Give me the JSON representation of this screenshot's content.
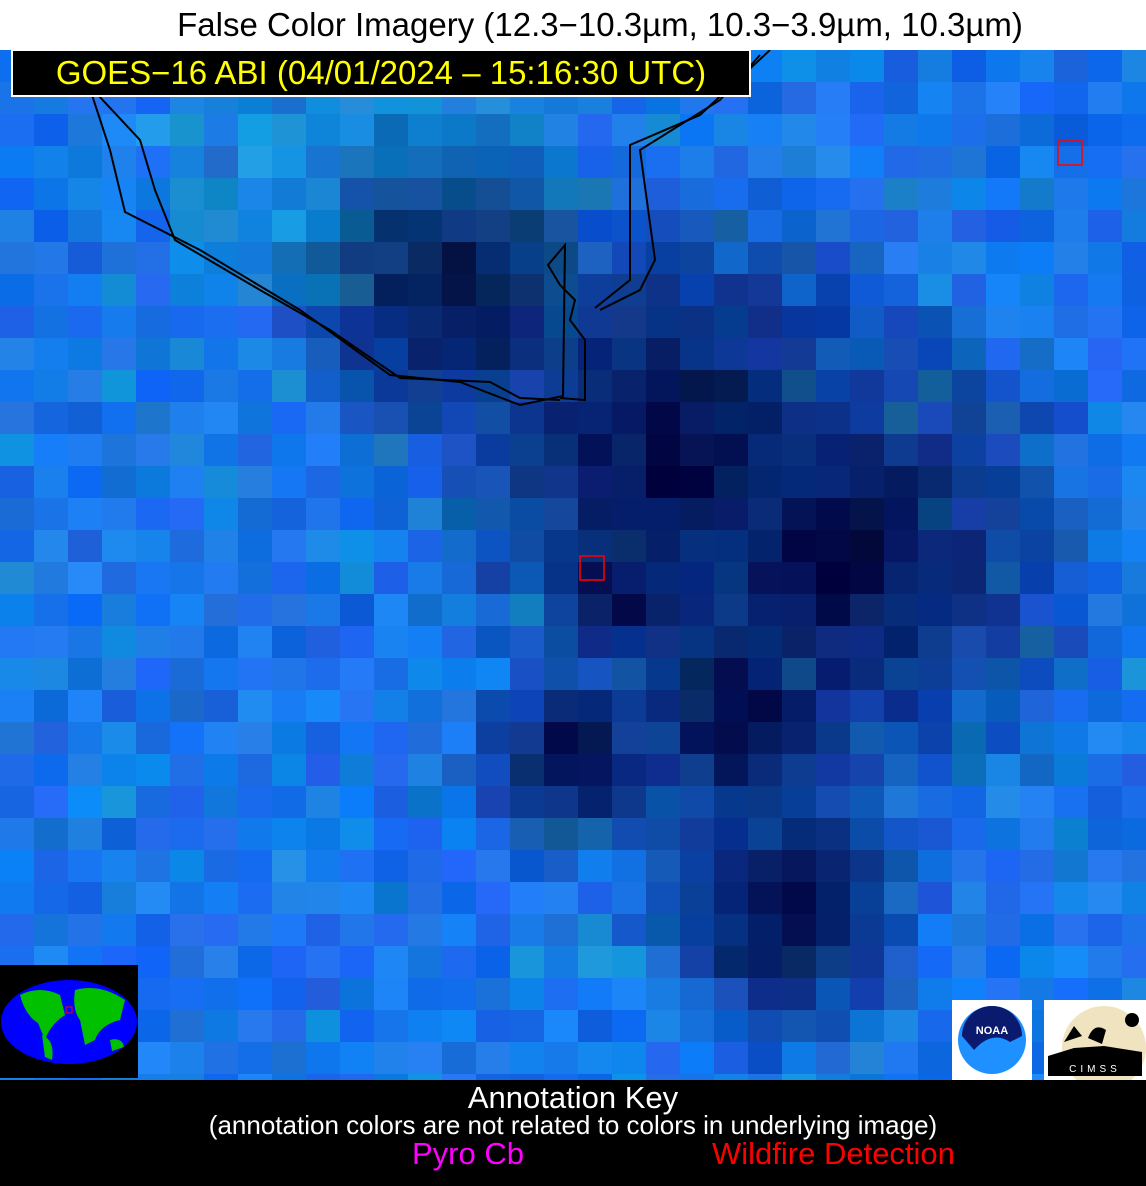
{
  "title": "False Color Imagery (12.3−10.3µm, 10.3−3.9µm, 10.3µm)",
  "subtitle": "GOES−16 ABI (04/01/2024 – 15:16:30 UTC)",
  "logos": {
    "noaa": "NOAA",
    "cimss": "CIMSS"
  },
  "annotation_key": {
    "title": "Annotation Key",
    "note": "(annotation colors are not related to colors in underlying image)",
    "items": [
      {
        "label": "Pyro Cb",
        "color": "#ff00ff"
      },
      {
        "label": "Wildfire Detection",
        "color": "#ff0000"
      }
    ]
  },
  "wildfire_detections": 2,
  "colors": {
    "subtitle_text": "#ffff00",
    "detection_box": "#ff0000",
    "coastline": "#000000"
  }
}
